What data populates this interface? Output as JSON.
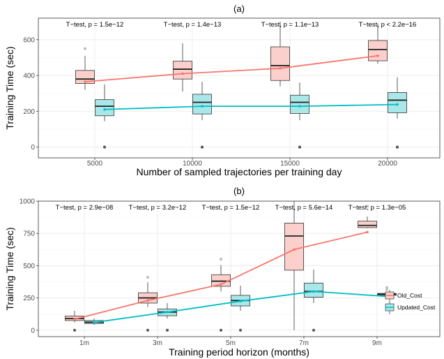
{
  "colors": {
    "old": "#F8766D",
    "old_fill": "#FBD0CC",
    "updated": "#00BFC4",
    "updated_fill": "#A9E7E9",
    "grid": "#EBEBEB",
    "grid_minor": "#F5F5F5",
    "outlier": "#555555"
  },
  "chart_data": [
    {
      "type": "box",
      "title": "(a)",
      "xlabel": "Number of sampled trajectories per training day",
      "ylabel": "Training Time (sec)",
      "categories": [
        "5000",
        "10000",
        "15000",
        "20000"
      ],
      "ylim": [
        -60,
        720
      ],
      "yticks": [
        0,
        200,
        400,
        600
      ],
      "grid": true,
      "annotations": [
        "T−test, p = 1.5e−12",
        "T−test, p = 1.4e−13",
        "T−test, p = 1.1e−13",
        "T−test, p < 2.2e−16"
      ],
      "series": [
        {
          "name": "Old_Cost",
          "mean": [
            365,
            410,
            440,
            510
          ],
          "boxes": [
            {
              "whisker_low": 320,
              "q1": 355,
              "median": 380,
              "q3": 428,
              "whisker_high": 510,
              "outliers": [
                550
              ]
            },
            {
              "whisker_low": 310,
              "q1": 380,
              "median": 435,
              "q3": 480,
              "whisker_high": 580,
              "outliers": []
            },
            {
              "whisker_low": 340,
              "q1": 372,
              "median": 455,
              "q3": 560,
              "whisker_high": 700,
              "outliers": []
            },
            {
              "whisker_low": 465,
              "q1": 482,
              "median": 545,
              "q3": 595,
              "whisker_high": 690,
              "outliers": []
            }
          ]
        },
        {
          "name": "Updated_Cost",
          "mean": [
            210,
            228,
            228,
            238
          ],
          "boxes": [
            {
              "whisker_low": 145,
              "q1": 175,
              "median": 228,
              "q3": 265,
              "whisker_high": 350,
              "outliers": [
                0,
                0
              ]
            },
            {
              "whisker_low": 150,
              "q1": 185,
              "median": 250,
              "q3": 295,
              "whisker_high": 365,
              "outliers": [
                0,
                0
              ]
            },
            {
              "whisker_low": 150,
              "q1": 188,
              "median": 250,
              "q3": 290,
              "whisker_high": 360,
              "outliers": [
                0,
                0
              ]
            },
            {
              "whisker_low": 160,
              "q1": 192,
              "median": 262,
              "q3": 305,
              "whisker_high": 390,
              "outliers": [
                0,
                0
              ]
            }
          ]
        }
      ]
    },
    {
      "type": "box",
      "title": "(b)",
      "xlabel": "Training period horizon (months)",
      "ylabel": "Training Time (sec)",
      "categories": [
        "1m",
        "3m",
        "5m",
        "7m",
        "9m"
      ],
      "ylim": [
        -50,
        1000
      ],
      "yticks": [
        0,
        250,
        500,
        750,
        1000
      ],
      "grid": true,
      "legend_position": "bottom-right",
      "annotations": [
        "T−test, p = 2.9e−08",
        "T−test, p = 3.2e−12",
        "T−test, p = 1.5e−12",
        "T−test, p = 5.6e−14",
        "T−test, p = 1.3e−05"
      ],
      "series": [
        {
          "name": "Old_Cost",
          "mean": [
            85,
            230,
            355,
            625,
            760
          ],
          "boxes": [
            {
              "whisker_low": 60,
              "q1": 75,
              "median": 90,
              "q3": 110,
              "whisker_high": 150,
              "outliers": [
                0
              ]
            },
            {
              "whisker_low": 180,
              "q1": 210,
              "median": 250,
              "q3": 290,
              "whisker_high": 370,
              "outliers": [
                410,
                0
              ]
            },
            {
              "whisker_low": 300,
              "q1": 340,
              "median": 380,
              "q3": 430,
              "whisker_high": 505,
              "outliers": [
                550,
                0
              ]
            },
            {
              "whisker_low": 0,
              "q1": 465,
              "median": 730,
              "q3": 830,
              "whisker_high": 1000,
              "outliers": []
            },
            {
              "whisker_low": 790,
              "q1": 795,
              "median": 812,
              "q3": 845,
              "whisker_high": 880,
              "outliers": [
                960
              ]
            }
          ]
        },
        {
          "name": "Updated_Cost",
          "mean": [
            60,
            140,
            225,
            300,
            262
          ],
          "boxes": [
            {
              "whisker_low": 40,
              "q1": 52,
              "median": 62,
              "q3": 75,
              "whisker_high": 90,
              "outliers": []
            },
            {
              "whisker_low": 90,
              "q1": 112,
              "median": 140,
              "q3": 165,
              "whisker_high": 210,
              "outliers": [
                0
              ]
            },
            {
              "whisker_low": 150,
              "q1": 188,
              "median": 230,
              "q3": 270,
              "whisker_high": 345,
              "outliers": [
                0
              ]
            },
            {
              "whisker_low": 210,
              "q1": 255,
              "median": 300,
              "q3": 365,
              "whisker_high": 470,
              "outliers": [
                0
              ]
            },
            {
              "whisker_low": 265,
              "q1": 270,
              "median": 278,
              "q3": 285,
              "whisker_high": 290,
              "outliers": [
                330,
                315
              ]
            }
          ]
        }
      ]
    }
  ]
}
